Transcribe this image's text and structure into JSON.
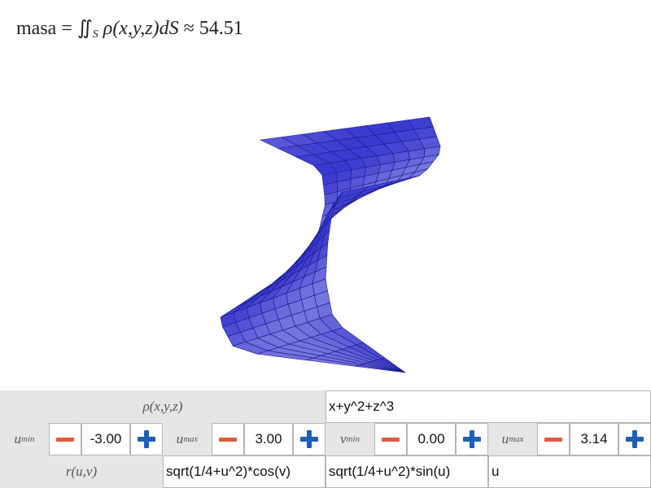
{
  "header": {
    "formula_prefix": "masa =",
    "integral": "∬",
    "integral_sub": "S",
    "integrand": "ρ(x,y,z)dS",
    "approx": "≈",
    "result": "54.51"
  },
  "controls": {
    "rho_label": "ρ(x,y,z)",
    "rho_expr": "x+y^2+z^3",
    "r_label": "r(u,v)",
    "r_x": "sqrt(1/4+u^2)*cos(v)",
    "r_y": "sqrt(1/4+u^2)*sin(u)",
    "r_z": "u",
    "params": [
      {
        "name": "u",
        "sub": "min",
        "value": "-3.00"
      },
      {
        "name": "u",
        "sub": "max",
        "value": "3.00"
      },
      {
        "name": "v",
        "sub": "min",
        "value": "0.00"
      },
      {
        "name": "u",
        "sub": "max",
        "value": "3.14"
      }
    ]
  },
  "colors": {
    "surface_fill": "#3a3ad0",
    "surface_grid": "#1c1c8c",
    "minus": "#e05a3c",
    "plus": "#1e5fb4"
  }
}
